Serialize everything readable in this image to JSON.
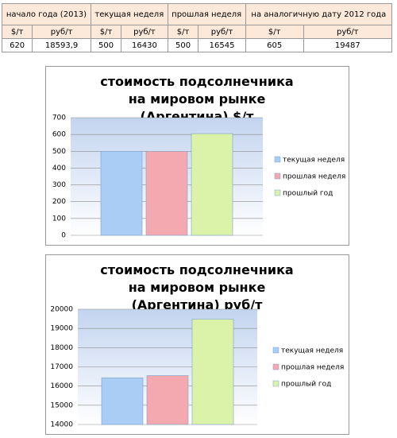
{
  "table": {
    "header": [
      "начало года (2013)",
      "текущая неделя",
      "прошлая неделя",
      "на аналогичную дату 2012 года"
    ],
    "units": [
      "$/т",
      "руб/т",
      "$/т",
      "руб/т",
      "$/т",
      "руб/т",
      "$/т",
      "руб/т"
    ],
    "rows": [
      [
        "620",
        "18593,9",
        "500",
        "16430",
        "500",
        "16545",
        "605",
        "19487"
      ]
    ]
  },
  "chart_data": [
    {
      "type": "bar",
      "title": "стоимость подсолнечника на мировом рынке (Аргентина) $/т",
      "series": [
        {
          "name": "текущая неделя",
          "color": "#a9cdf5",
          "values": [
            500
          ]
        },
        {
          "name": "прошлая неделя",
          "color": "#f4a9b0",
          "values": [
            500
          ]
        },
        {
          "name": "прошлый год",
          "color": "#daf3a9",
          "values": [
            605
          ]
        }
      ],
      "ylim": [
        0,
        700
      ],
      "yticks": [
        0,
        100,
        200,
        300,
        400,
        500,
        600,
        700
      ],
      "grid": true,
      "legend": "right"
    },
    {
      "type": "bar",
      "title": "стоимость подсолнечника на мировом рынке (Аргентина) руб/т",
      "series": [
        {
          "name": "текущая неделя",
          "color": "#a9cdf5",
          "values": [
            16430
          ]
        },
        {
          "name": "прошлая неделя",
          "color": "#f4a9b0",
          "values": [
            16545
          ]
        },
        {
          "name": "прошлый год",
          "color": "#daf3a9",
          "values": [
            19487
          ]
        }
      ],
      "ylim": [
        14000,
        20000
      ],
      "yticks": [
        14000,
        15000,
        16000,
        17000,
        18000,
        19000,
        20000
      ],
      "grid": true,
      "legend": "right"
    }
  ]
}
